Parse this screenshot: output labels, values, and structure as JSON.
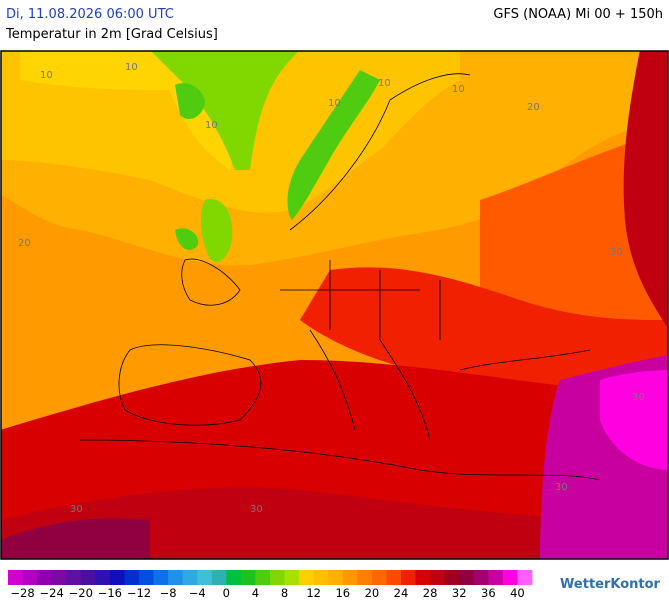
{
  "header": {
    "datetime": "Di, 11.08.2026 06:00 UTC",
    "subtitle": "Temperatur in 2m [Grad Celsius]",
    "model": "GFS (NOAA) Mi 00 + 150h"
  },
  "map": {
    "contour_labels": [
      "10",
      "10",
      "10",
      "10",
      "10",
      "10",
      "20",
      "20",
      "30",
      "30",
      "30",
      "30",
      "30"
    ]
  },
  "legend": {
    "colors": [
      "#d000d0",
      "#b000c0",
      "#9000b0",
      "#7a0aa0",
      "#6010a0",
      "#4a10a0",
      "#3010b0",
      "#1010b8",
      "#0030d0",
      "#0050e0",
      "#1070e8",
      "#2090e8",
      "#30a8e0",
      "#40c0d8",
      "#30b0b0",
      "#00c040",
      "#20c020",
      "#50cc10",
      "#80d800",
      "#a8e000",
      "#ffd000",
      "#ffc000",
      "#ffb000",
      "#ff9800",
      "#ff8000",
      "#ff6800",
      "#ff4800",
      "#f02000",
      "#d80000",
      "#c00010",
      "#a00020",
      "#900040",
      "#a00070",
      "#c800a0",
      "#ff00e0",
      "#ff60ff"
    ],
    "ticks": [
      "−28",
      "−24",
      "−20",
      "−16",
      "−12",
      "−8",
      "−4",
      "0",
      "4",
      "8",
      "12",
      "16",
      "20",
      "24",
      "28",
      "32",
      "36",
      "40"
    ]
  },
  "logo": "WetterKontor"
}
